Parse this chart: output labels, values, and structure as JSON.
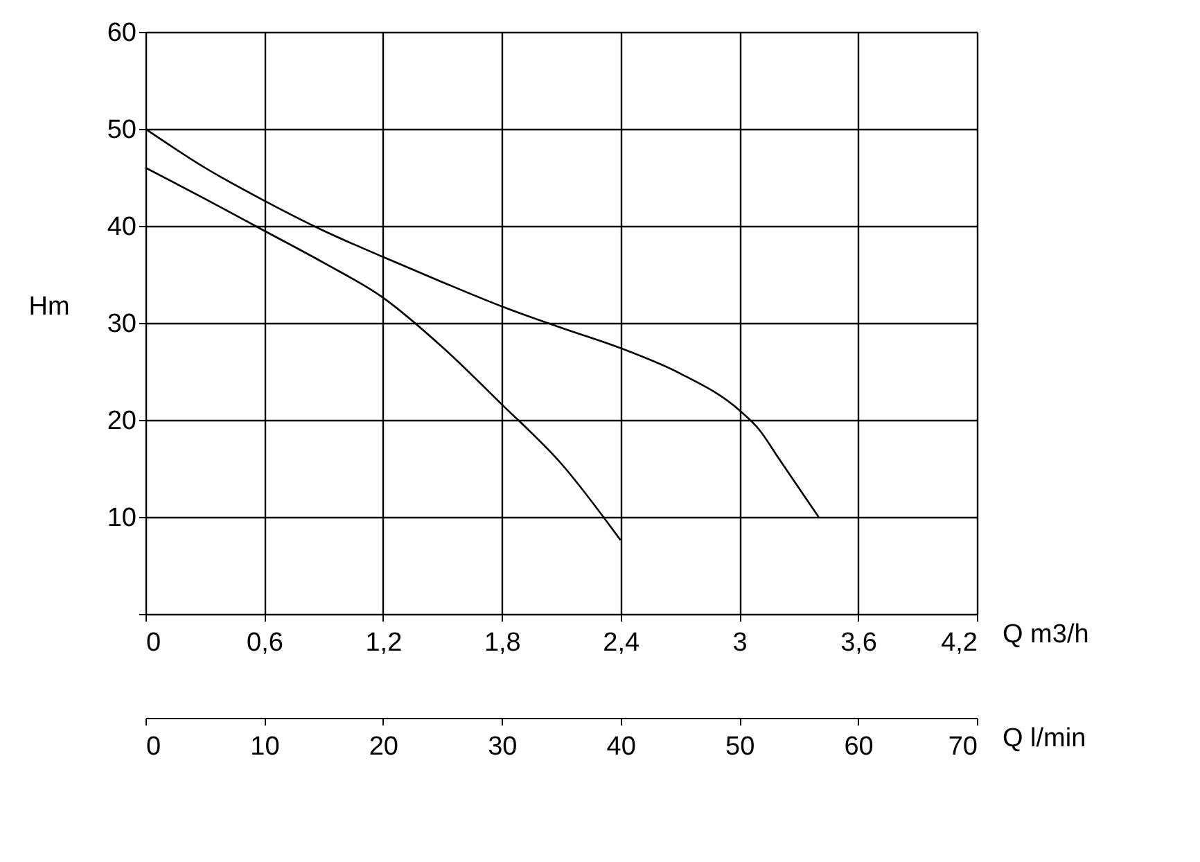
{
  "chart_data": {
    "type": "line",
    "xlabel": "Q m3/h",
    "ylabel": "Hm",
    "x2label": "Q l/min",
    "xlim": [
      0,
      4.2
    ],
    "xticks": [
      0,
      {
        "value": 0.6,
        "label": "0,6"
      },
      {
        "value": 1.2,
        "label": "1,2"
      },
      {
        "value": 1.8,
        "label": "1,8"
      },
      {
        "value": 2.4,
        "label": "2,4"
      },
      3,
      {
        "value": 3.6,
        "label": "3,6"
      },
      {
        "value": 4.2,
        "label": "4,2"
      }
    ],
    "ylim": [
      0,
      60
    ],
    "yticks": [
      {
        "value": 0,
        "label": null
      },
      10,
      20,
      30,
      40,
      50,
      60
    ],
    "x2lim": [
      0,
      70
    ],
    "x2ticks": [
      0,
      10,
      20,
      30,
      40,
      50,
      60,
      70
    ],
    "grid": true,
    "marker": "none",
    "line_style": "solid",
    "series": [
      {
        "color": "#000000",
        "x": [
          0,
          0.3,
          0.6,
          0.9,
          1.2,
          1.5,
          1.8,
          2.1,
          2.4,
          2.7,
          3.0,
          3.1,
          3.2,
          3.3,
          3.4
        ],
        "values": [
          50,
          46,
          42.6,
          39.5,
          36.8,
          34.2,
          31.7,
          29.5,
          27.4,
          24.8,
          21,
          19,
          16,
          13,
          10
        ]
      },
      {
        "color": "#000000",
        "x": [
          0,
          0.3,
          0.6,
          0.9,
          1.2,
          1.5,
          1.8,
          2.1,
          2.4
        ],
        "values": [
          46,
          42.8,
          39.5,
          36.2,
          32.6,
          27.5,
          21.6,
          15.5,
          7.6
        ]
      }
    ]
  }
}
